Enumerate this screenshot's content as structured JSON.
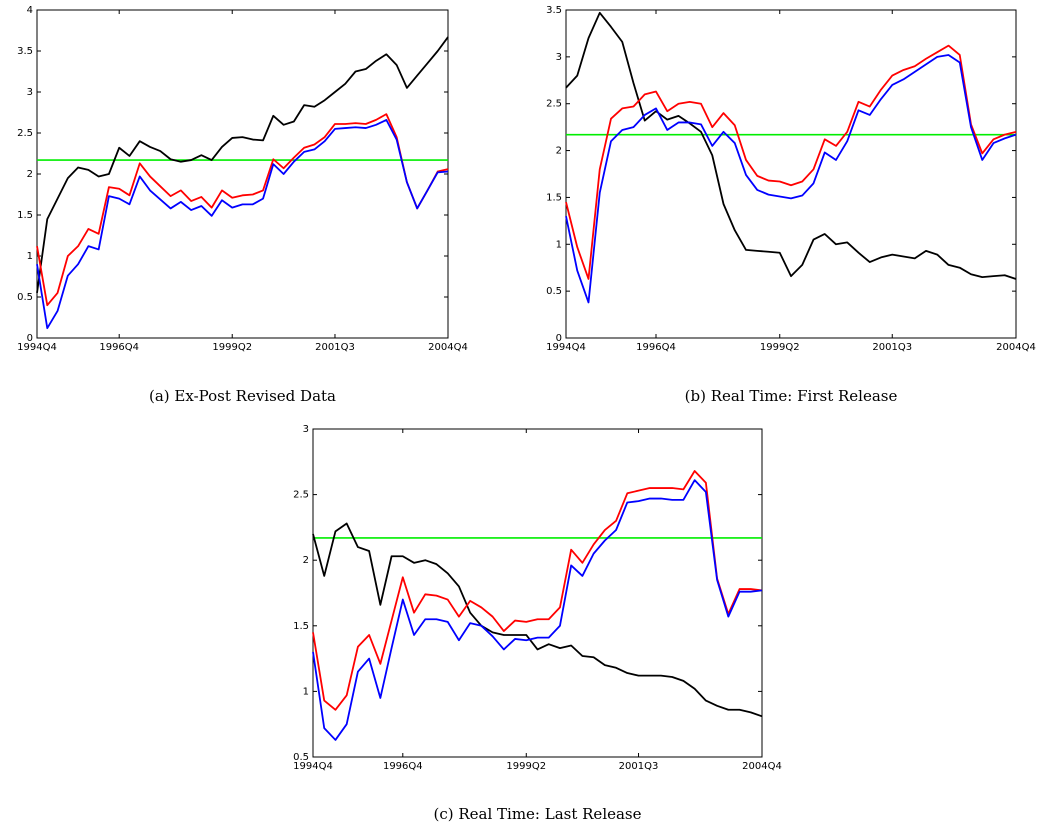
{
  "chart_data": [
    {
      "type": "line",
      "caption": "(a) Ex-Post Revised Data",
      "categories": [
        "1994Q4",
        null,
        null,
        null,
        null,
        null,
        null,
        null,
        "1996Q4",
        null,
        null,
        null,
        null,
        null,
        null,
        null,
        null,
        null,
        null,
        "1999Q2",
        null,
        null,
        null,
        null,
        null,
        null,
        null,
        null,
        null,
        "2001Q3",
        null,
        null,
        null,
        null,
        null,
        null,
        null,
        null,
        null,
        null,
        "2004Q4"
      ],
      "series": [
        {
          "color": "#000000",
          "values": [
            0.55,
            1.45,
            1.7,
            1.95,
            2.08,
            2.05,
            1.97,
            2.0,
            2.32,
            2.22,
            2.4,
            2.33,
            2.28,
            2.18,
            2.15,
            2.17,
            2.23,
            2.17,
            2.33,
            2.44,
            2.45,
            2.42,
            2.41,
            2.71,
            2.6,
            2.64,
            2.84,
            2.82,
            2.9,
            3.0,
            3.1,
            3.25,
            3.28,
            3.38,
            3.46,
            3.33,
            3.05,
            3.2,
            3.35,
            3.5,
            3.67
          ]
        },
        {
          "color": "#ff0000",
          "values": [
            1.12,
            0.4,
            0.55,
            1.0,
            1.12,
            1.33,
            1.27,
            1.84,
            1.82,
            1.74,
            2.13,
            1.97,
            1.85,
            1.73,
            1.8,
            1.67,
            1.72,
            1.59,
            1.8,
            1.71,
            1.74,
            1.75,
            1.8,
            2.18,
            2.07,
            2.2,
            2.32,
            2.36,
            2.45,
            2.61,
            2.61,
            2.62,
            2.61,
            2.66,
            2.73,
            2.45,
            1.9,
            1.58,
            1.8,
            2.03,
            2.06
          ]
        },
        {
          "color": "#0000ff",
          "values": [
            0.9,
            0.12,
            0.33,
            0.76,
            0.9,
            1.12,
            1.08,
            1.73,
            1.7,
            1.63,
            1.97,
            1.8,
            1.69,
            1.58,
            1.66,
            1.56,
            1.61,
            1.49,
            1.68,
            1.59,
            1.63,
            1.63,
            1.7,
            2.12,
            2.0,
            2.15,
            2.27,
            2.3,
            2.4,
            2.55,
            2.56,
            2.57,
            2.56,
            2.6,
            2.66,
            2.42,
            1.9,
            1.58,
            1.8,
            2.02,
            2.03
          ]
        }
      ],
      "reference_line": {
        "value": 2.17,
        "color": "#00ee00"
      },
      "ylim": [
        0,
        4
      ],
      "yticks": [
        0,
        0.5,
        1,
        1.5,
        2,
        2.5,
        3,
        3.5,
        4
      ]
    },
    {
      "type": "line",
      "caption": "(b) Real Time: First Release",
      "categories": [
        "1994Q4",
        null,
        null,
        null,
        null,
        null,
        null,
        null,
        "1996Q4",
        null,
        null,
        null,
        null,
        null,
        null,
        null,
        null,
        null,
        null,
        "1999Q2",
        null,
        null,
        null,
        null,
        null,
        null,
        null,
        null,
        null,
        "2001Q3",
        null,
        null,
        null,
        null,
        null,
        null,
        null,
        null,
        null,
        null,
        "2004Q4"
      ],
      "series": [
        {
          "color": "#000000",
          "values": [
            2.67,
            2.8,
            3.2,
            3.47,
            3.32,
            3.16,
            2.72,
            2.32,
            2.42,
            2.33,
            2.37,
            2.29,
            2.2,
            1.95,
            1.43,
            1.15,
            0.94,
            0.93,
            0.92,
            0.91,
            0.66,
            0.78,
            1.05,
            1.11,
            1.0,
            1.02,
            0.91,
            0.81,
            0.86,
            0.89,
            0.87,
            0.85,
            0.93,
            0.89,
            0.78,
            0.75,
            0.68,
            0.65,
            0.66,
            0.67,
            0.63
          ]
        },
        {
          "color": "#ff0000",
          "values": [
            1.45,
            0.97,
            0.63,
            1.8,
            2.34,
            2.45,
            2.47,
            2.6,
            2.63,
            2.42,
            2.5,
            2.52,
            2.5,
            2.25,
            2.4,
            2.27,
            1.9,
            1.73,
            1.68,
            1.67,
            1.63,
            1.67,
            1.8,
            2.12,
            2.05,
            2.2,
            2.52,
            2.47,
            2.65,
            2.8,
            2.86,
            2.9,
            2.98,
            3.05,
            3.12,
            3.02,
            2.28,
            1.97,
            2.12,
            2.17,
            2.2
          ]
        },
        {
          "color": "#0000ff",
          "values": [
            1.3,
            0.72,
            0.38,
            1.55,
            2.1,
            2.22,
            2.25,
            2.38,
            2.45,
            2.22,
            2.3,
            2.3,
            2.28,
            2.05,
            2.2,
            2.08,
            1.74,
            1.58,
            1.53,
            1.51,
            1.49,
            1.52,
            1.65,
            1.98,
            1.9,
            2.1,
            2.43,
            2.38,
            2.55,
            2.7,
            2.76,
            2.84,
            2.92,
            3.0,
            3.02,
            2.94,
            2.25,
            1.9,
            2.08,
            2.13,
            2.17
          ]
        }
      ],
      "reference_line": {
        "value": 2.17,
        "color": "#00ee00"
      },
      "ylim": [
        0,
        3.5
      ],
      "yticks": [
        0,
        0.5,
        1,
        1.5,
        2,
        2.5,
        3,
        3.5
      ]
    },
    {
      "type": "line",
      "caption": "(c) Real Time: Last Release",
      "categories": [
        "1994Q4",
        null,
        null,
        null,
        null,
        null,
        null,
        null,
        "1996Q4",
        null,
        null,
        null,
        null,
        null,
        null,
        null,
        null,
        null,
        null,
        "1999Q2",
        null,
        null,
        null,
        null,
        null,
        null,
        null,
        null,
        null,
        "2001Q3",
        null,
        null,
        null,
        null,
        null,
        null,
        null,
        null,
        null,
        null,
        "2004Q4"
      ],
      "series": [
        {
          "color": "#000000",
          "values": [
            2.2,
            1.88,
            2.22,
            2.28,
            2.1,
            2.07,
            1.66,
            2.03,
            2.03,
            1.98,
            2.0,
            1.97,
            1.9,
            1.8,
            1.6,
            1.5,
            1.45,
            1.43,
            1.43,
            1.43,
            1.32,
            1.36,
            1.33,
            1.35,
            1.27,
            1.26,
            1.2,
            1.18,
            1.14,
            1.12,
            1.12,
            1.12,
            1.11,
            1.08,
            1.02,
            0.93,
            0.89,
            0.86,
            0.86,
            0.84,
            0.81
          ]
        },
        {
          "color": "#ff0000",
          "values": [
            1.45,
            0.93,
            0.86,
            0.97,
            1.34,
            1.43,
            1.21,
            1.54,
            1.87,
            1.6,
            1.74,
            1.73,
            1.7,
            1.57,
            1.69,
            1.64,
            1.57,
            1.46,
            1.54,
            1.53,
            1.55,
            1.55,
            1.64,
            2.08,
            1.98,
            2.12,
            2.23,
            2.3,
            2.51,
            2.53,
            2.55,
            2.55,
            2.55,
            2.54,
            2.68,
            2.59,
            1.86,
            1.59,
            1.78,
            1.78,
            1.77
          ]
        },
        {
          "color": "#0000ff",
          "values": [
            1.3,
            0.72,
            0.63,
            0.75,
            1.15,
            1.25,
            0.95,
            1.33,
            1.7,
            1.43,
            1.55,
            1.55,
            1.53,
            1.39,
            1.52,
            1.5,
            1.42,
            1.32,
            1.4,
            1.39,
            1.41,
            1.41,
            1.5,
            1.96,
            1.88,
            2.05,
            2.15,
            2.23,
            2.44,
            2.45,
            2.47,
            2.47,
            2.46,
            2.46,
            2.61,
            2.52,
            1.85,
            1.57,
            1.76,
            1.76,
            1.77
          ]
        }
      ],
      "reference_line": {
        "value": 2.17,
        "color": "#00ee00"
      },
      "ylim": [
        0.5,
        3
      ],
      "yticks": [
        0.5,
        1,
        1.5,
        2,
        2.5,
        3
      ]
    }
  ]
}
